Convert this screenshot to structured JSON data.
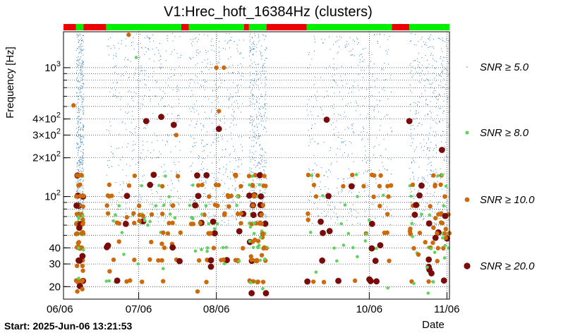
{
  "chart_data": {
    "type": "scatter",
    "title": "V1:Hrec_hoft_16384Hz (clusters)",
    "xlabel": "Date",
    "ylabel": "Frequency [Hz]",
    "yscale": "log",
    "ylim": [
      16,
      1900
    ],
    "xlim": [
      "2025-06-06",
      "2025-11-07"
    ],
    "x_ticks": [
      "06/06",
      "07/06",
      "08/06",
      "10/06",
      "11/06"
    ],
    "y_ticks": [
      {
        "value": 20,
        "label": "20"
      },
      {
        "value": 30,
        "label": "30"
      },
      {
        "value": 40,
        "label": "40"
      },
      {
        "value": 100,
        "label": "10^2"
      },
      {
        "value": 200,
        "label": "2×10^2"
      },
      {
        "value": 300,
        "label": "3×10^2"
      },
      {
        "value": 400,
        "label": "4×10^2"
      },
      {
        "value": 1000,
        "label": "10^3"
      }
    ],
    "grid": true,
    "legend_position": "right",
    "start_label": "Start: 2025-Jun-06 13:21:53",
    "series": [
      {
        "name": "SNR ≥ 5.0",
        "color": "#2b7bb9"
      },
      {
        "name": "SNR ≥ 8.0",
        "color": "#5fd35f"
      },
      {
        "name": "SNR ≥ 10.0",
        "color": "#cc6a0a"
      },
      {
        "name": "SNR ≥ 20.0",
        "color": "#7a0b0b"
      }
    ],
    "status_bar_colors": {
      "on": "#00ee00",
      "off": "#ee0000"
    },
    "status_segments": [
      {
        "from": "2025-06-06",
        "to": "2025-06-11",
        "state": "off"
      },
      {
        "from": "2025-06-11",
        "to": "2025-06-14",
        "state": "on"
      },
      {
        "from": "2025-06-14",
        "to": "2025-06-23",
        "state": "off"
      },
      {
        "from": "2025-06-23",
        "to": "2025-07-23",
        "state": "on"
      },
      {
        "from": "2025-07-23",
        "to": "2025-07-26",
        "state": "off"
      },
      {
        "from": "2025-07-26",
        "to": "2025-08-17",
        "state": "on"
      },
      {
        "from": "2025-08-17",
        "to": "2025-08-19",
        "state": "off"
      },
      {
        "from": "2025-08-19",
        "to": "2025-08-26",
        "state": "on"
      },
      {
        "from": "2025-08-26",
        "to": "2025-09-11",
        "state": "off"
      },
      {
        "from": "2025-09-11",
        "to": "2025-10-15",
        "state": "on"
      },
      {
        "from": "2025-10-15",
        "to": "2025-10-22",
        "state": "off"
      },
      {
        "from": "2025-10-22",
        "to": "2025-11-07",
        "state": "on"
      }
    ],
    "active_periods": [
      [
        "2025-06-11",
        "2025-06-14"
      ],
      [
        "2025-06-23",
        "2025-07-23"
      ],
      [
        "2025-07-26",
        "2025-08-17"
      ],
      [
        "2025-08-19",
        "2025-08-26"
      ],
      [
        "2025-09-11",
        "2025-10-15"
      ],
      [
        "2025-10-22",
        "2025-11-07"
      ]
    ],
    "frequency_lines_hz": [
      22,
      32,
      40,
      52,
      62,
      73,
      85,
      101,
      122,
      146
    ],
    "notable_clusters": [
      {
        "date": "2025-06-10",
        "freq": 510,
        "snr_band": "SNR ≥ 10.0"
      },
      {
        "date": "2025-07-02",
        "freq": 1800,
        "snr_band": "SNR ≥ 10.0"
      },
      {
        "date": "2025-07-05",
        "freq": 1200,
        "snr_band": "SNR ≥ 8.0"
      },
      {
        "date": "2025-07-09",
        "freq": 385,
        "snr_band": "SNR ≥ 20.0"
      },
      {
        "date": "2025-07-15",
        "freq": 415,
        "snr_band": "SNR ≥ 20.0"
      },
      {
        "date": "2025-07-20",
        "freq": 360,
        "snr_band": "SNR ≥ 20.0"
      },
      {
        "date": "2025-07-21",
        "freq": 300,
        "snr_band": "SNR ≥ 10.0"
      },
      {
        "date": "2025-08-06",
        "freq": 1000,
        "snr_band": "SNR ≥ 10.0"
      },
      {
        "date": "2025-08-07",
        "freq": 460,
        "snr_band": "SNR ≥ 10.0"
      },
      {
        "date": "2025-08-07",
        "freq": 335,
        "snr_band": "SNR ≥ 20.0"
      },
      {
        "date": "2025-08-09",
        "freq": 1000,
        "snr_band": "SNR ≥ 10.0"
      },
      {
        "date": "2025-09-19",
        "freq": 395,
        "snr_band": "SNR ≥ 20.0"
      },
      {
        "date": "2025-10-22",
        "freq": 385,
        "snr_band": "SNR ≥ 20.0"
      },
      {
        "date": "2025-11-04",
        "freq": 230,
        "snr_band": "SNR ≥ 20.0"
      }
    ]
  }
}
